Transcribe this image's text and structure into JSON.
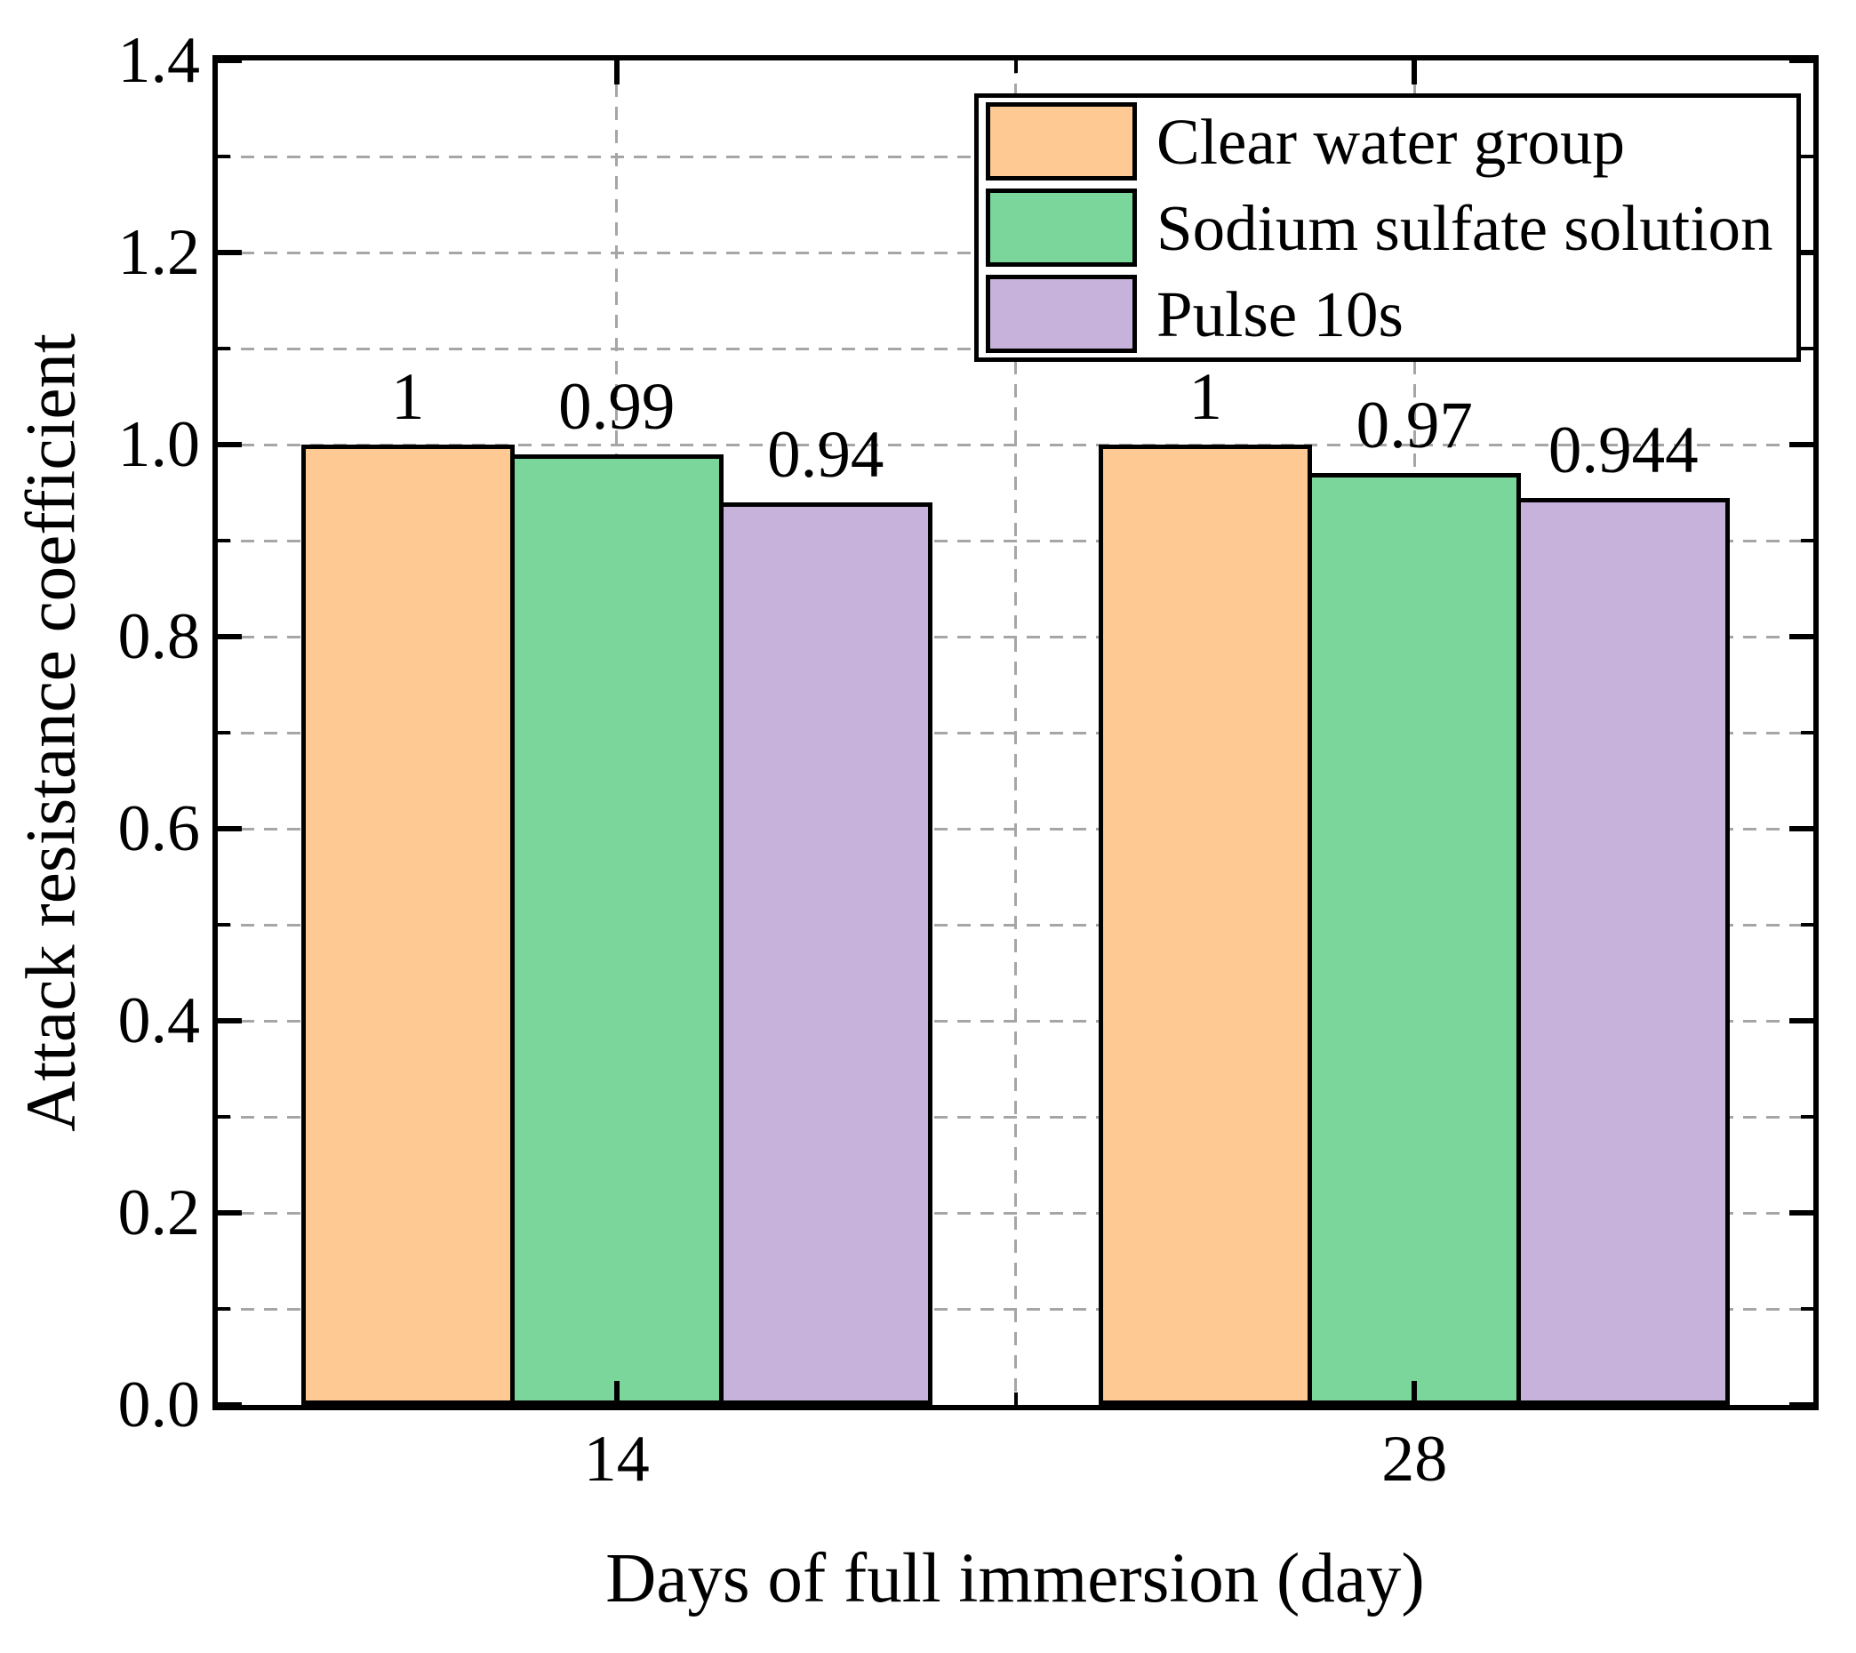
{
  "chart_data": {
    "type": "bar",
    "title": "",
    "xlabel": "Days of full immersion (day)",
    "ylabel": "Attack resistance coefficient",
    "categories": [
      14,
      28
    ],
    "category_labels": [
      "14",
      "28"
    ],
    "series": [
      {
        "name": "Clear water group",
        "color": "#FEC993",
        "values": [
          1.0,
          1.0
        ],
        "value_labels": [
          "1",
          "1"
        ]
      },
      {
        "name": "Sodium sulfate solution",
        "color": "#7BD69B",
        "values": [
          0.99,
          0.97
        ],
        "value_labels": [
          "0.99",
          "0.97"
        ]
      },
      {
        "name": "Pulse 10s",
        "color": "#C7B2DC",
        "values": [
          0.94,
          0.944
        ],
        "value_labels": [
          "0.94",
          "0.944"
        ]
      }
    ],
    "ylim": [
      0,
      1.4
    ],
    "xlim": [
      7,
      35
    ],
    "bar_width_days": 3.745,
    "y_major_ticks": [
      0.0,
      0.2,
      0.4,
      0.6,
      0.8,
      1.0,
      1.2,
      1.4
    ],
    "y_major_tick_labels": [
      "0.0",
      "0.2",
      "0.4",
      "0.6",
      "0.8",
      "1.0",
      "1.2",
      "1.4"
    ],
    "y_minor_ticks": [
      0.1,
      0.3,
      0.5,
      0.7,
      0.9,
      1.1,
      1.3
    ],
    "x_major_ticks": [
      14,
      28
    ],
    "x_minor_ticks": [
      21
    ],
    "y_grid_values": [
      0.1,
      0.2,
      0.3,
      0.4,
      0.5,
      0.6,
      0.7,
      0.8,
      0.9,
      1.0,
      1.1,
      1.2,
      1.3
    ],
    "x_grid_values": [
      14,
      21,
      28
    ],
    "grid": true,
    "legend_position": "top-right",
    "colors": {
      "grid": "#a6a6a6",
      "spine": "#000000",
      "bar_edge": "#000000",
      "text": "#000000",
      "background": "#ffffff"
    }
  }
}
